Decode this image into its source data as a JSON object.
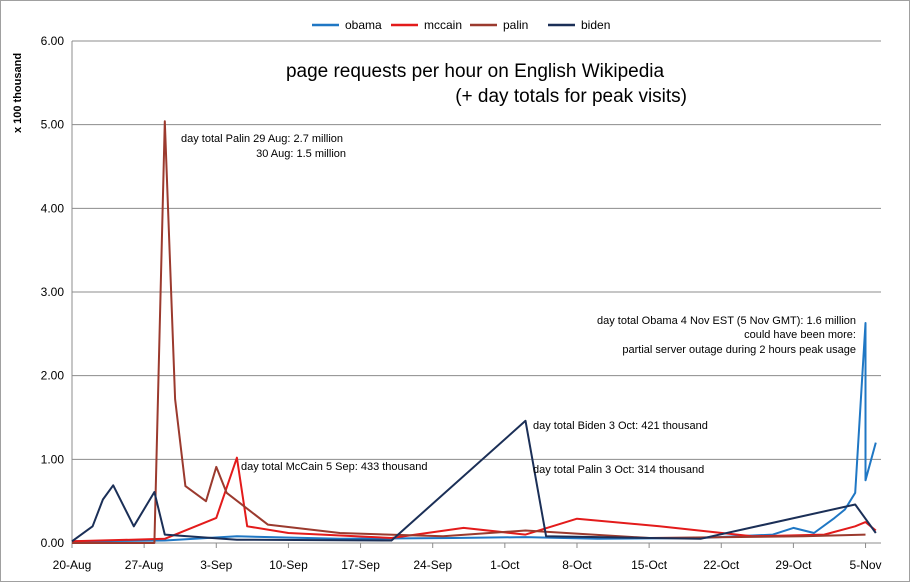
{
  "chart_data": {
    "type": "line",
    "title": "page requests per hour on English Wikipedia",
    "subtitle": "(+ day totals for peak visits)",
    "ylabel": "x  100  thousand",
    "xlabel": "",
    "ylim": [
      0,
      6
    ],
    "y_ticks": [
      "0.00",
      "1.00",
      "2.00",
      "3.00",
      "4.00",
      "5.00",
      "6.00"
    ],
    "x_ticks": [
      "20-Aug",
      "27-Aug",
      "3-Sep",
      "10-Sep",
      "17-Sep",
      "24-Sep",
      "1-Oct",
      "8-Oct",
      "15-Oct",
      "22-Oct",
      "29-Oct",
      "5-Nov"
    ],
    "grid": "horizontal",
    "legend_position": "top",
    "series": [
      {
        "name": "obama",
        "color": "#1f77c4",
        "points": [
          [
            "2008-08-20",
            0.02
          ],
          [
            "2008-08-29",
            0.03
          ],
          [
            "2008-09-05",
            0.08
          ],
          [
            "2008-09-15",
            0.05
          ],
          [
            "2008-09-26",
            0.06
          ],
          [
            "2008-10-03",
            0.07
          ],
          [
            "2008-10-10",
            0.05
          ],
          [
            "2008-10-20",
            0.06
          ],
          [
            "2008-10-27",
            0.1
          ],
          [
            "2008-10-29",
            0.18
          ],
          [
            "2008-10-31",
            0.12
          ],
          [
            "2008-11-02",
            0.3
          ],
          [
            "2008-11-03",
            0.4
          ],
          [
            "2008-11-04",
            0.6
          ],
          [
            "2008-11-05",
            2.63
          ],
          [
            "2008-11-05",
            0.75
          ],
          [
            "2008-11-06",
            1.2
          ]
        ]
      },
      {
        "name": "mccain",
        "color": "#e31b1b",
        "points": [
          [
            "2008-08-20",
            0.02
          ],
          [
            "2008-08-29",
            0.05
          ],
          [
            "2008-09-03",
            0.3
          ],
          [
            "2008-09-05",
            1.02
          ],
          [
            "2008-09-06",
            0.2
          ],
          [
            "2008-09-10",
            0.12
          ],
          [
            "2008-09-20",
            0.06
          ],
          [
            "2008-09-27",
            0.18
          ],
          [
            "2008-10-03",
            0.1
          ],
          [
            "2008-10-08",
            0.29
          ],
          [
            "2008-10-16",
            0.2
          ],
          [
            "2008-10-25",
            0.08
          ],
          [
            "2008-11-01",
            0.1
          ],
          [
            "2008-11-04",
            0.2
          ],
          [
            "2008-11-05",
            0.25
          ],
          [
            "2008-11-06",
            0.15
          ]
        ]
      },
      {
        "name": "palin",
        "color": "#9b3a2e",
        "points": [
          [
            "2008-08-20",
            0.0
          ],
          [
            "2008-08-28",
            0.0
          ],
          [
            "2008-08-29",
            5.04
          ],
          [
            "2008-08-30",
            1.72
          ],
          [
            "2008-08-31",
            0.68
          ],
          [
            "2008-09-02",
            0.5
          ],
          [
            "2008-09-03",
            0.91
          ],
          [
            "2008-09-04",
            0.6
          ],
          [
            "2008-09-08",
            0.22
          ],
          [
            "2008-09-15",
            0.12
          ],
          [
            "2008-09-25",
            0.08
          ],
          [
            "2008-10-03",
            0.15
          ],
          [
            "2008-10-15",
            0.06
          ],
          [
            "2008-10-30",
            0.08
          ],
          [
            "2008-11-05",
            0.1
          ]
        ]
      },
      {
        "name": "biden",
        "color": "#1b2f57",
        "points": [
          [
            "2008-08-20",
            0.02
          ],
          [
            "2008-08-22",
            0.2
          ],
          [
            "2008-08-23",
            0.52
          ],
          [
            "2008-08-24",
            0.69
          ],
          [
            "2008-08-26",
            0.2
          ],
          [
            "2008-08-28",
            0.61
          ],
          [
            "2008-08-29",
            0.1
          ],
          [
            "2008-09-05",
            0.04
          ],
          [
            "2008-09-20",
            0.03
          ],
          [
            "2008-10-03",
            1.46
          ],
          [
            "2008-10-05",
            0.08
          ],
          [
            "2008-10-20",
            0.05
          ],
          [
            "2008-11-04",
            0.46
          ],
          [
            "2008-11-06",
            0.12
          ]
        ]
      }
    ],
    "annotations": [
      {
        "text": "day total Palin 29 Aug: 2.7 million"
      },
      {
        "text": "30 Aug: 1.5 million"
      },
      {
        "text": "day total McCain 5 Sep: 433 thousand"
      },
      {
        "text": "day total Biden 3 Oct: 421 thousand"
      },
      {
        "text": "day total Palin 3 Oct: 314 thousand"
      },
      {
        "text": "day total Obama 4 Nov EST (5 Nov GMT): 1.6 million"
      },
      {
        "text": "could have been more:"
      },
      {
        "text": "partial server outage during 2 hours  peak usage"
      }
    ]
  }
}
